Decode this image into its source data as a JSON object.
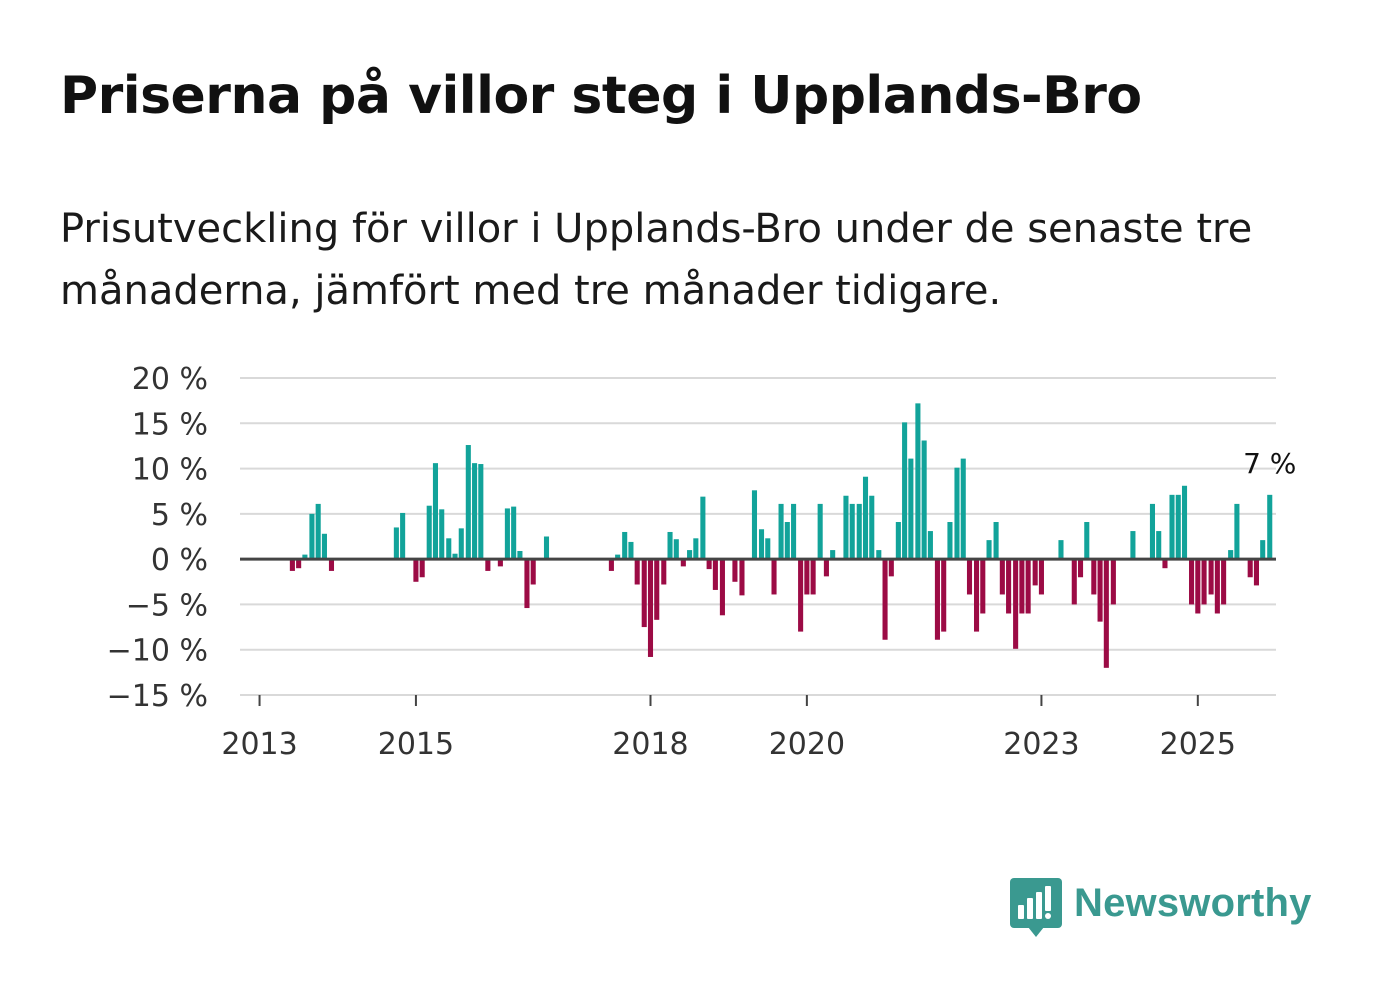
{
  "title": "Priserna på villor steg i Upplands-Bro",
  "subtitle": "Prisutveckling för villor i Upplands-Bro under de senaste tre månaderna, jämfört med tre månader tidigare.",
  "brand": {
    "name": "Newsworthy",
    "icon": "newsworthy-logo-icon"
  },
  "colors": {
    "positive": "#12a39a",
    "negative": "#9c0b45",
    "grid": "#d9d9d9",
    "zero": "#444444",
    "text": "#333333"
  },
  "chart_data": {
    "type": "bar",
    "title": "Priserna på villor steg i Upplands-Bro",
    "xlabel": "",
    "ylabel": "",
    "ylim": [
      -15,
      20
    ],
    "xlim": [
      2012.75,
      2026.0
    ],
    "y_ticks": [
      20,
      15,
      10,
      5,
      0,
      -5,
      -10,
      -15
    ],
    "y_tick_labels": [
      "20 %",
      "15 %",
      "10 %",
      "5 %",
      "0 %",
      "−5 %",
      "−10 %",
      "−15 %"
    ],
    "x_ticks": [
      2013,
      2015,
      2018,
      2020,
      2023,
      2025
    ],
    "x_tick_labels": [
      "2013",
      "2015",
      "2018",
      "2020",
      "2023",
      "2025"
    ],
    "annotation": {
      "label": "7 %",
      "at": "last"
    },
    "series": [
      {
        "name": "Prisutveckling",
        "points": [
          [
            2013.42,
            -1.3
          ],
          [
            2013.5,
            -1.0
          ],
          [
            2013.58,
            0.5
          ],
          [
            2013.67,
            5.0
          ],
          [
            2013.75,
            6.1
          ],
          [
            2013.83,
            2.8
          ],
          [
            2013.92,
            -1.3
          ],
          [
            2014.75,
            3.5
          ],
          [
            2014.83,
            5.1
          ],
          [
            2015.0,
            -2.5
          ],
          [
            2015.08,
            -2.0
          ],
          [
            2015.17,
            5.9
          ],
          [
            2015.25,
            10.6
          ],
          [
            2015.33,
            5.5
          ],
          [
            2015.42,
            2.3
          ],
          [
            2015.5,
            0.6
          ],
          [
            2015.58,
            3.4
          ],
          [
            2015.67,
            12.6
          ],
          [
            2015.75,
            10.6
          ],
          [
            2015.83,
            10.5
          ],
          [
            2015.92,
            -1.3
          ],
          [
            2016.08,
            -0.8
          ],
          [
            2016.17,
            5.6
          ],
          [
            2016.25,
            5.8
          ],
          [
            2016.33,
            0.9
          ],
          [
            2016.42,
            -5.4
          ],
          [
            2016.5,
            -2.8
          ],
          [
            2016.67,
            2.5
          ],
          [
            2017.5,
            -1.3
          ],
          [
            2017.58,
            0.5
          ],
          [
            2017.67,
            3.0
          ],
          [
            2017.75,
            1.9
          ],
          [
            2017.83,
            -2.8
          ],
          [
            2017.92,
            -7.5
          ],
          [
            2018.0,
            -10.8
          ],
          [
            2018.08,
            -6.7
          ],
          [
            2018.17,
            -2.8
          ],
          [
            2018.25,
            3.0
          ],
          [
            2018.33,
            2.2
          ],
          [
            2018.42,
            -0.8
          ],
          [
            2018.5,
            1.0
          ],
          [
            2018.58,
            2.3
          ],
          [
            2018.67,
            6.9
          ],
          [
            2018.75,
            -1.1
          ],
          [
            2018.83,
            -3.4
          ],
          [
            2018.92,
            -6.2
          ],
          [
            2019.08,
            -2.5
          ],
          [
            2019.17,
            -4.0
          ],
          [
            2019.33,
            7.6
          ],
          [
            2019.42,
            3.3
          ],
          [
            2019.5,
            2.3
          ],
          [
            2019.58,
            -3.9
          ],
          [
            2019.67,
            6.1
          ],
          [
            2019.75,
            4.1
          ],
          [
            2019.83,
            6.1
          ],
          [
            2019.92,
            -8.0
          ],
          [
            2020.0,
            -3.9
          ],
          [
            2020.08,
            -3.9
          ],
          [
            2020.17,
            6.1
          ],
          [
            2020.25,
            -1.9
          ],
          [
            2020.33,
            1.0
          ],
          [
            2020.5,
            7.0
          ],
          [
            2020.58,
            6.1
          ],
          [
            2020.67,
            6.1
          ],
          [
            2020.75,
            9.1
          ],
          [
            2020.83,
            7.0
          ],
          [
            2020.92,
            1.0
          ],
          [
            2021.0,
            -8.9
          ],
          [
            2021.08,
            -1.9
          ],
          [
            2021.17,
            4.1
          ],
          [
            2021.25,
            15.1
          ],
          [
            2021.33,
            11.1
          ],
          [
            2021.42,
            17.2
          ],
          [
            2021.5,
            13.1
          ],
          [
            2021.58,
            3.1
          ],
          [
            2021.67,
            -8.9
          ],
          [
            2021.75,
            -8.0
          ],
          [
            2021.83,
            4.1
          ],
          [
            2021.92,
            10.1
          ],
          [
            2022.0,
            11.1
          ],
          [
            2022.08,
            -3.9
          ],
          [
            2022.17,
            -8.0
          ],
          [
            2022.25,
            -6.0
          ],
          [
            2022.33,
            2.1
          ],
          [
            2022.42,
            4.1
          ],
          [
            2022.5,
            -3.9
          ],
          [
            2022.58,
            -6.0
          ],
          [
            2022.67,
            -9.9
          ],
          [
            2022.75,
            -6.0
          ],
          [
            2022.83,
            -6.0
          ],
          [
            2022.92,
            -2.9
          ],
          [
            2023.0,
            -3.9
          ],
          [
            2023.25,
            2.1
          ],
          [
            2023.42,
            -5.0
          ],
          [
            2023.5,
            -2.0
          ],
          [
            2023.58,
            4.1
          ],
          [
            2023.67,
            -3.9
          ],
          [
            2023.75,
            -6.9
          ],
          [
            2023.83,
            -12.0
          ],
          [
            2023.92,
            -5.0
          ],
          [
            2024.17,
            3.1
          ],
          [
            2024.42,
            6.1
          ],
          [
            2024.5,
            3.1
          ],
          [
            2024.58,
            -1.0
          ],
          [
            2024.67,
            7.1
          ],
          [
            2024.75,
            7.1
          ],
          [
            2024.83,
            8.1
          ],
          [
            2024.92,
            -5.0
          ],
          [
            2025.0,
            -6.0
          ],
          [
            2025.08,
            -5.0
          ],
          [
            2025.17,
            -3.9
          ],
          [
            2025.25,
            -6.0
          ],
          [
            2025.33,
            -5.0
          ],
          [
            2025.42,
            1.0
          ],
          [
            2025.5,
            6.1
          ],
          [
            2025.67,
            -2.0
          ],
          [
            2025.75,
            -2.9
          ],
          [
            2025.83,
            2.1
          ],
          [
            2025.92,
            7.1
          ]
        ]
      }
    ]
  }
}
